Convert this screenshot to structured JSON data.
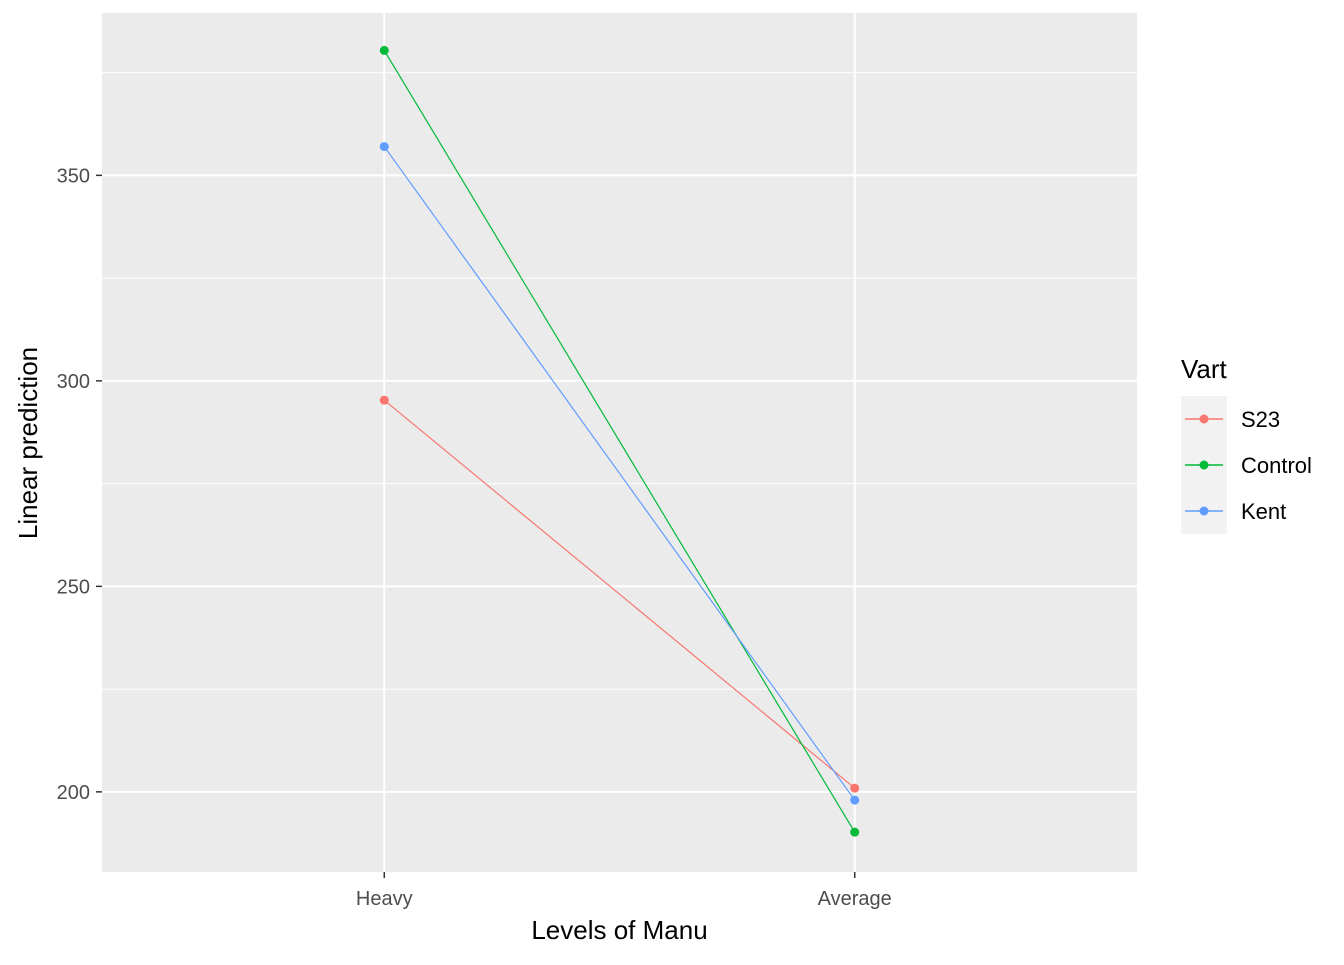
{
  "chart_data": {
    "type": "line",
    "title": "",
    "xlabel": "Levels of Manu",
    "ylabel": "Linear prediction",
    "categories": [
      "Heavy",
      "Average"
    ],
    "ylim": [
      180.5,
      389.5
    ],
    "yticks": [
      200,
      250,
      300,
      350
    ],
    "grid": true,
    "legend": {
      "title": "Vart",
      "position": "right"
    },
    "series": [
      {
        "name": "S23",
        "values": [
          295.3,
          200.9
        ],
        "color": "#F8766D"
      },
      {
        "name": "Control",
        "values": [
          380.4,
          190.2
        ],
        "color": "#00BA38"
      },
      {
        "name": "Kent",
        "values": [
          357.0,
          198.0
        ],
        "color": "#619CFF"
      }
    ]
  }
}
